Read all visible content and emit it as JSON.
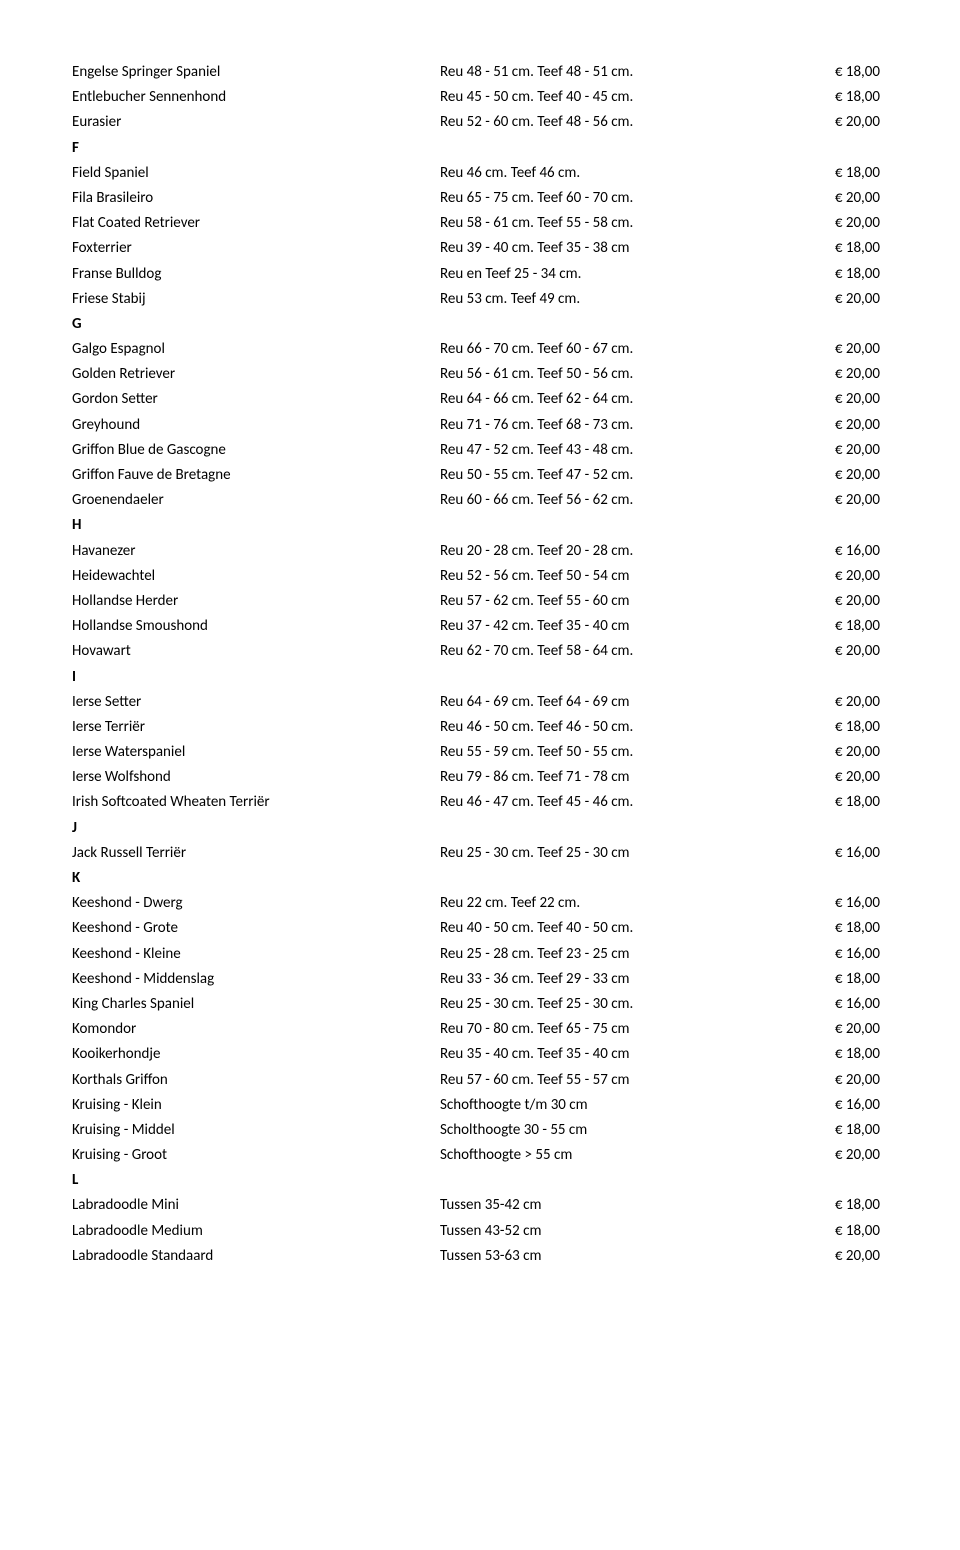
{
  "rows": [
    {
      "breed": "Engelse Springer Spaniel",
      "size": "Reu 48 - 51 cm. Teef 48 - 51 cm.",
      "price": "€ 18,00"
    },
    {
      "breed": "Entlebucher Sennenhond",
      "size": "Reu 45 - 50 cm. Teef 40 - 45 cm.",
      "price": "€ 18,00"
    },
    {
      "breed": "Eurasier",
      "size": "Reu 52 - 60 cm. Teef 48 - 56 cm.",
      "price": "€ 20,00"
    },
    {
      "breed": "F",
      "section": true
    },
    {
      "breed": "Field Spaniel",
      "size": "Reu 46 cm. Teef 46 cm.",
      "price": "€ 18,00"
    },
    {
      "breed": "Fila Brasileiro",
      "size": "Reu 65 - 75 cm. Teef 60 - 70 cm.",
      "price": "€ 20,00"
    },
    {
      "breed": "Flat Coated Retriever",
      "size": "Reu 58 - 61 cm. Teef 55 - 58 cm.",
      "price": "€ 20,00"
    },
    {
      "breed": "Foxterrier",
      "size": "Reu 39 - 40 cm. Teef 35 - 38 cm",
      "price": "€ 18,00"
    },
    {
      "breed": "Franse Bulldog",
      "size": "Reu en Teef 25 - 34 cm.",
      "price": "€ 18,00"
    },
    {
      "breed": "Friese Stabij",
      "size": "Reu 53 cm. Teef 49 cm.",
      "price": "€ 20,00"
    },
    {
      "breed": "G",
      "section": true
    },
    {
      "breed": "Galgo Espagnol",
      "size": "Reu 66 - 70 cm. Teef 60 - 67 cm.",
      "price": "€ 20,00"
    },
    {
      "breed": "Golden Retriever",
      "size": "Reu 56 - 61 cm. Teef 50 - 56 cm.",
      "price": "€ 20,00"
    },
    {
      "breed": "Gordon Setter",
      "size": "Reu 64 - 66 cm. Teef 62 - 64 cm.",
      "price": "€ 20,00"
    },
    {
      "breed": "Greyhound",
      "size": "Reu 71 - 76 cm. Teef 68 - 73 cm.",
      "price": "€ 20,00"
    },
    {
      "breed": "Griffon Blue de Gascogne",
      "size": "Reu 47 - 52 cm. Teef 43 - 48 cm.",
      "price": "€ 20,00"
    },
    {
      "breed": "Griffon Fauve de Bretagne",
      "size": "Reu 50 - 55 cm. Teef 47 - 52 cm.",
      "price": "€ 20,00"
    },
    {
      "breed": "Groenendaeler",
      "size": "Reu 60 - 66 cm. Teef 56 - 62 cm.",
      "price": "€ 20,00"
    },
    {
      "breed": "H",
      "section": true
    },
    {
      "breed": "Havanezer",
      "size": "Reu 20 - 28 cm. Teef 20 - 28 cm.",
      "price": "€ 16,00"
    },
    {
      "breed": "Heidewachtel",
      "size": "Reu 52 - 56 cm. Teef 50 - 54 cm",
      "price": "€ 20,00"
    },
    {
      "breed": "Hollandse Herder",
      "size": "Reu 57 - 62 cm. Teef 55 - 60 cm",
      "price": "€ 20,00"
    },
    {
      "breed": "Hollandse Smoushond",
      "size": "Reu 37 - 42 cm. Teef 35 - 40 cm",
      "price": "€ 18,00"
    },
    {
      "breed": "Hovawart",
      "size": "Reu 62 - 70 cm. Teef 58 - 64 cm.",
      "price": "€ 20,00"
    },
    {
      "breed": "I",
      "section": true
    },
    {
      "breed": "Ierse Setter",
      "size": "Reu 64 - 69 cm. Teef 64 - 69 cm",
      "price": "€ 20,00"
    },
    {
      "breed": "Ierse Terriër",
      "size": "Reu 46 - 50 cm. Teef 46 - 50 cm.",
      "price": "€ 18,00"
    },
    {
      "breed": "Ierse Waterspaniel",
      "size": "Reu 55 - 59 cm. Teef 50 - 55 cm.",
      "price": "€ 20,00"
    },
    {
      "breed": "Ierse Wolfshond",
      "size": "Reu 79 - 86 cm. Teef 71 - 78 cm",
      "price": "€ 20,00"
    },
    {
      "breed": "Irish Softcoated Wheaten Terriër",
      "size": "Reu 46 - 47 cm. Teef 45 - 46 cm.",
      "price": "€ 18,00"
    },
    {
      "breed": "J",
      "section": true
    },
    {
      "breed": "Jack Russell Terriër",
      "size": "Reu 25 - 30 cm. Teef 25 - 30 cm",
      "price": "€ 16,00"
    },
    {
      "breed": "K",
      "section": true
    },
    {
      "breed": "Keeshond - Dwerg",
      "size": "Reu 22 cm. Teef 22 cm.",
      "price": "€ 16,00"
    },
    {
      "breed": "Keeshond - Grote",
      "size": "Reu 40 - 50 cm. Teef 40 - 50 cm.",
      "price": "€ 18,00"
    },
    {
      "breed": "Keeshond - Kleine",
      "size": "Reu 25 - 28 cm. Teef 23 - 25 cm",
      "price": "€ 16,00"
    },
    {
      "breed": "Keeshond - Middenslag",
      "size": "Reu 33 - 36 cm. Teef 29 - 33 cm",
      "price": "€ 18,00"
    },
    {
      "breed": "King Charles Spaniel",
      "size": "Reu 25 - 30 cm. Teef 25 - 30 cm.",
      "price": "€ 16,00"
    },
    {
      "breed": "Komondor",
      "size": "Reu 70 - 80 cm. Teef 65 - 75 cm",
      "price": "€ 20,00"
    },
    {
      "breed": "Kooikerhondje",
      "size": "Reu 35 - 40 cm. Teef 35 - 40 cm",
      "price": "€ 18,00"
    },
    {
      "breed": "Korthals Griffon",
      "size": "Reu 57 - 60 cm. Teef 55 - 57 cm",
      "price": "€ 20,00"
    },
    {
      "breed": "Kruising - Klein",
      "size": "Schofthoogte t/m 30 cm",
      "price": "€ 16,00"
    },
    {
      "breed": "Kruising - Middel",
      "size": "Scholthoogte 30 - 55 cm",
      "price": "€ 18,00"
    },
    {
      "breed": "Kruising - Groot",
      "size": "Schofthoogte > 55 cm",
      "price": "€ 20,00"
    },
    {
      "breed": "L",
      "section": true
    },
    {
      "breed": "Labradoodle Mini",
      "size": "Tussen 35-42 cm",
      "price": "€ 18,00"
    },
    {
      "breed": "Labradoodle Medium",
      "size": "Tussen 43-52 cm",
      "price": "€ 18,00"
    },
    {
      "breed": "Labradoodle Standaard",
      "size": "Tussen 53-63 cm",
      "price": "€ 20,00"
    }
  ]
}
